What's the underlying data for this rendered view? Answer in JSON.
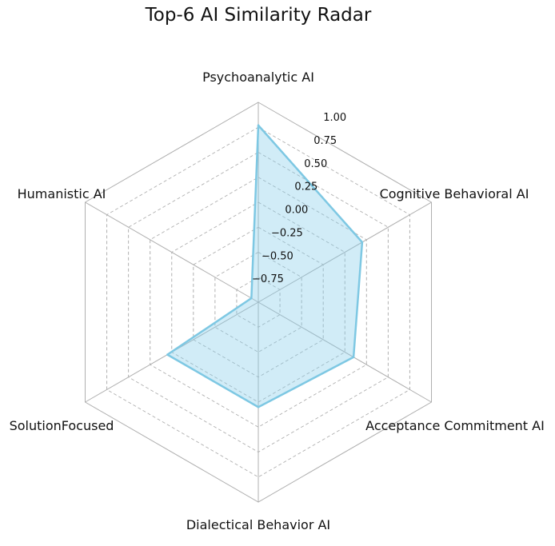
{
  "chart_data": {
    "type": "radar",
    "title": "Top-6 AI Similarity Radar",
    "categories": [
      "Psychoanalytic AI",
      "Cognitive Behavioral AI",
      "Acceptance Commitment AI",
      "Dialectical Behavior AI",
      "SolutionFocused",
      "Humanistic AI"
    ],
    "values": [
      0.77,
      0.2,
      0.1,
      0.05,
      0.05,
      -0.92
    ],
    "rlim": [
      -1.0,
      1.0
    ],
    "rticks": [
      "1.00",
      "0.75",
      "0.50",
      "0.25",
      "0.00",
      "−0.25",
      "−0.50",
      "−0.75"
    ],
    "grid": true,
    "colors": {
      "line": "#7ec8e3",
      "fill": "#87ceeb",
      "grid": "#b0b0b0"
    }
  }
}
